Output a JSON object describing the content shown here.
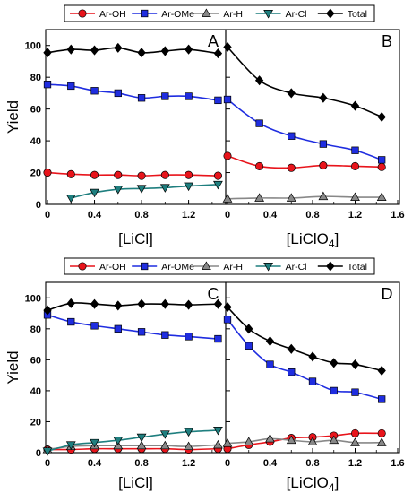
{
  "figure": {
    "legend_entries": [
      {
        "name": "Ar-OH",
        "color": "#e8141b",
        "marker": "circle"
      },
      {
        "name": "Ar-OMe",
        "color": "#1f2de0",
        "marker": "square"
      },
      {
        "name": "Ar-H",
        "color": "#888888",
        "marker": "triangle-up"
      },
      {
        "name": "Ar-Cl",
        "color": "#1f7f7f",
        "marker": "triangle-down"
      },
      {
        "name": "Total",
        "color": "#000000",
        "marker": "diamond"
      }
    ]
  },
  "chart_data": [
    {
      "type": "line",
      "panel_label": "A",
      "xlabel": "[LiCl]",
      "ylabel": "Yield",
      "xlim": [
        0,
        1.5
      ],
      "ylim": [
        0,
        110
      ],
      "xticks": [
        "0",
        "0.4",
        "0.8",
        "1.2"
      ],
      "xtick_values": [
        0,
        0.4,
        0.8,
        1.2
      ],
      "yticks": [
        "0",
        "20",
        "40",
        "60",
        "80",
        "100"
      ],
      "ytick_values": [
        0,
        20,
        40,
        60,
        80,
        100
      ],
      "legend": "top",
      "series": [
        {
          "name": "Ar-OH",
          "x": [
            0,
            0.2,
            0.4,
            0.6,
            0.8,
            1.0,
            1.2,
            1.45
          ],
          "y": [
            20,
            19,
            18.5,
            18.5,
            18,
            18.5,
            18.5,
            18
          ]
        },
        {
          "name": "Ar-OMe",
          "x": [
            0,
            0.2,
            0.4,
            0.6,
            0.8,
            1.0,
            1.2,
            1.45
          ],
          "y": [
            75.5,
            74.5,
            71.5,
            70,
            67,
            68,
            68,
            65.5
          ]
        },
        {
          "name": "Ar-Cl",
          "x": [
            0.2,
            0.4,
            0.6,
            0.8,
            1.0,
            1.2,
            1.45
          ],
          "y": [
            4,
            7.5,
            9.5,
            10,
            10.5,
            11.5,
            12.5
          ]
        },
        {
          "name": "Total",
          "x": [
            0,
            0.2,
            0.4,
            0.6,
            0.8,
            1.0,
            1.2,
            1.45
          ],
          "y": [
            95.5,
            97.5,
            97,
            98.5,
            95.5,
            96.5,
            97.5,
            95
          ]
        }
      ]
    },
    {
      "type": "line",
      "panel_label": "B",
      "xlabel": "[LiClO4]",
      "xlim": [
        0,
        1.6
      ],
      "ylim": [
        0,
        110
      ],
      "xticks": [
        "0",
        "0.4",
        "0.8",
        "1.2",
        "1.6"
      ],
      "xtick_values": [
        0,
        0.4,
        0.8,
        1.2,
        1.6
      ],
      "series": [
        {
          "name": "Ar-OH",
          "x": [
            0,
            0.3,
            0.6,
            0.9,
            1.2,
            1.45
          ],
          "y": [
            30.5,
            24,
            23,
            24.5,
            24,
            23.5
          ]
        },
        {
          "name": "Ar-OMe",
          "x": [
            0,
            0.3,
            0.6,
            0.9,
            1.2,
            1.45
          ],
          "y": [
            66,
            51,
            43,
            38,
            34,
            28
          ]
        },
        {
          "name": "Ar-H",
          "x": [
            0,
            0.3,
            0.6,
            0.9,
            1.2,
            1.45
          ],
          "y": [
            3.5,
            4,
            4,
            5,
            4.5,
            4.5
          ]
        },
        {
          "name": "Total",
          "x": [
            0,
            0.3,
            0.6,
            0.9,
            1.2,
            1.45
          ],
          "y": [
            99,
            78,
            70,
            67,
            62,
            55
          ]
        }
      ]
    },
    {
      "type": "line",
      "panel_label": "C",
      "xlabel": "[LiCl]",
      "ylabel": "Yield",
      "xlim": [
        0,
        1.5
      ],
      "ylim": [
        0,
        110
      ],
      "xticks": [
        "0",
        "0.4",
        "0.8",
        "1.2"
      ],
      "xtick_values": [
        0,
        0.4,
        0.8,
        1.2
      ],
      "yticks": [
        "0",
        "20",
        "40",
        "60",
        "80",
        "100"
      ],
      "ytick_values": [
        0,
        20,
        40,
        60,
        80,
        100
      ],
      "legend": "top",
      "series": [
        {
          "name": "Ar-OH",
          "x": [
            0,
            0.2,
            0.4,
            0.6,
            0.8,
            1.0,
            1.2,
            1.45
          ],
          "y": [
            2,
            2,
            2.5,
            2.5,
            2.5,
            2.5,
            2,
            2.5
          ]
        },
        {
          "name": "Ar-OMe",
          "x": [
            0,
            0.2,
            0.4,
            0.6,
            0.8,
            1.0,
            1.2,
            1.45
          ],
          "y": [
            89,
            84.5,
            82,
            80,
            78,
            76,
            75,
            73.5
          ]
        },
        {
          "name": "Ar-H",
          "x": [
            0,
            0.2,
            0.4,
            0.6,
            0.8,
            1.0,
            1.2,
            1.45
          ],
          "y": [
            2,
            4,
            4.5,
            4.5,
            4.5,
            4.5,
            4,
            5
          ]
        },
        {
          "name": "Ar-Cl",
          "x": [
            0,
            0.2,
            0.4,
            0.6,
            0.8,
            1.0,
            1.2,
            1.45
          ],
          "y": [
            1,
            5,
            6.5,
            8,
            10,
            12,
            13.5,
            14.5
          ]
        },
        {
          "name": "Total",
          "x": [
            0,
            0.2,
            0.4,
            0.6,
            0.8,
            1.0,
            1.2,
            1.45
          ],
          "y": [
            92,
            96.5,
            96,
            95,
            96,
            96,
            95.5,
            96
          ]
        }
      ]
    },
    {
      "type": "line",
      "panel_label": "D",
      "xlabel": "[LiClO4]",
      "xlim": [
        0,
        1.6
      ],
      "ylim": [
        0,
        110
      ],
      "xticks": [
        "0",
        "0.4",
        "0.8",
        "1.2",
        "1.6"
      ],
      "xtick_values": [
        0,
        0.4,
        0.8,
        1.2,
        1.6
      ],
      "series": [
        {
          "name": "Ar-OH",
          "x": [
            0,
            0.2,
            0.4,
            0.6,
            0.8,
            1.0,
            1.2,
            1.45
          ],
          "y": [
            2.5,
            5,
            7,
            9.5,
            10,
            11,
            12.5,
            12.5
          ]
        },
        {
          "name": "Ar-OMe",
          "x": [
            0,
            0.2,
            0.4,
            0.6,
            0.8,
            1.0,
            1.2,
            1.45
          ],
          "y": [
            86,
            69,
            57,
            52,
            46,
            40,
            39,
            34.5
          ]
        },
        {
          "name": "Ar-H",
          "x": [
            0,
            0.2,
            0.4,
            0.6,
            0.8,
            1.0,
            1.2,
            1.45
          ],
          "y": [
            6,
            7,
            9,
            8,
            7,
            8,
            6.5,
            6.5
          ]
        },
        {
          "name": "Total",
          "x": [
            0,
            0.2,
            0.4,
            0.6,
            0.8,
            1.0,
            1.2,
            1.45
          ],
          "y": [
            94,
            80,
            72,
            67,
            62,
            58,
            57,
            53
          ]
        }
      ]
    }
  ]
}
